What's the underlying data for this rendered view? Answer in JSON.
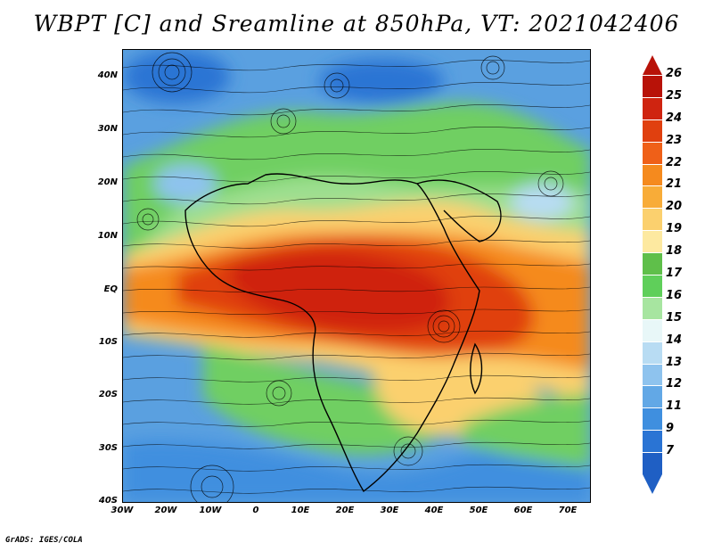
{
  "title": "WBPT [C] and Sreamline at 850hPa, VT: 2021042406",
  "credit": "GrADS: IGES/COLA",
  "lat_labels": [
    "40N",
    "30N",
    "20N",
    "10N",
    "EQ",
    "10S",
    "20S",
    "30S",
    "40S"
  ],
  "lon_labels": [
    "30W",
    "20W",
    "10W",
    "0",
    "10E",
    "20E",
    "30E",
    "40E",
    "50E",
    "60E",
    "70E"
  ],
  "colorbar": {
    "labels": [
      "26",
      "25",
      "24",
      "23",
      "22",
      "21",
      "20",
      "19",
      "18",
      "17",
      "16",
      "15",
      "14",
      "13",
      "12",
      "11",
      "9",
      "7"
    ],
    "colors": [
      "#b81208",
      "#cf2410",
      "#e0400f",
      "#ef6018",
      "#f58a1e",
      "#f8ac38",
      "#fbd06e",
      "#fde9a0",
      "#5fbf4a",
      "#5fcf5a",
      "#a7e5a0",
      "#e8f7f8",
      "#b8dcf3",
      "#8ec3ee",
      "#62a8e6",
      "#3f8fdf",
      "#2a74d4",
      "#1f5fc4"
    ],
    "top_arrow_color": "#b81208",
    "bottom_arrow_color": "#1f5fc4"
  }
}
